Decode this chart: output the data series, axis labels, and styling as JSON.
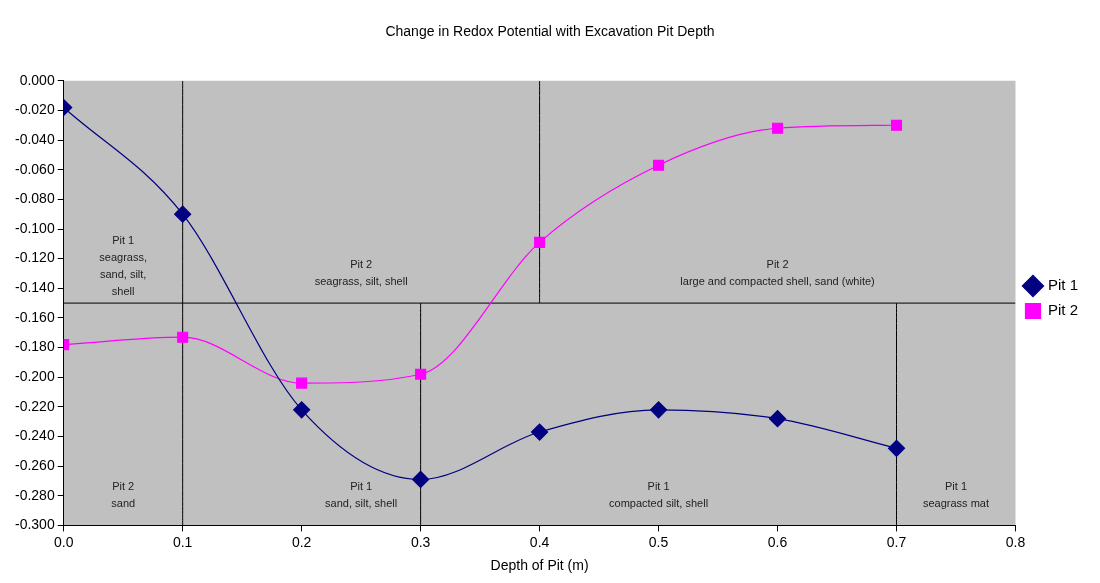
{
  "chart_data": {
    "type": "line",
    "title": "Change in Redox Potential with Excavation Pit Depth",
    "xlabel": "Depth of Pit (m)",
    "xlim": [
      0,
      0.8
    ],
    "xticks": [
      {
        "value": 0,
        "label": "0.0"
      },
      {
        "value": 0.1,
        "label": "0.1"
      },
      {
        "value": 0.2,
        "label": "0.2"
      },
      {
        "value": 0.3,
        "label": "0.3"
      },
      {
        "value": 0.4,
        "label": "0.4"
      },
      {
        "value": 0.5,
        "label": "0.5"
      },
      {
        "value": 0.6,
        "label": "0.6"
      },
      {
        "value": 0.7,
        "label": "0.7"
      },
      {
        "value": 0.8,
        "label": "0.8"
      }
    ],
    "ylim": [
      -0.3,
      0
    ],
    "yticks": [
      {
        "value": 0,
        "label": "0.000"
      },
      {
        "value": -0.02,
        "label": "-0.020"
      },
      {
        "value": -0.04,
        "label": "-0.040"
      },
      {
        "value": -0.06,
        "label": "-0.060"
      },
      {
        "value": -0.08,
        "label": "-0.080"
      },
      {
        "value": -0.1,
        "label": "-0.100"
      },
      {
        "value": -0.12,
        "label": "-0.120"
      },
      {
        "value": -0.14,
        "label": "-0.140"
      },
      {
        "value": -0.16,
        "label": "-0.160"
      },
      {
        "value": -0.18,
        "label": "-0.180"
      },
      {
        "value": -0.2,
        "label": "-0.200"
      },
      {
        "value": -0.22,
        "label": "-0.220"
      },
      {
        "value": -0.24,
        "label": "-0.240"
      },
      {
        "value": -0.26,
        "label": "-0.260"
      },
      {
        "value": -0.28,
        "label": "-0.280"
      },
      {
        "value": -0.3,
        "label": "-0.300"
      }
    ],
    "grid": false,
    "legend": "right",
    "x": [
      0,
      0.1,
      0.2,
      0.3,
      0.4,
      0.5,
      0.6,
      0.7
    ],
    "series": [
      {
        "name": "Pit 1",
        "color": "#000080",
        "marker": "diamond",
        "values": [
          -0.018,
          -0.09,
          -0.222,
          -0.269,
          -0.237,
          -0.222,
          -0.228,
          -0.248
        ]
      },
      {
        "name": "Pit 2",
        "color": "#ff00ff",
        "marker": "square",
        "values": [
          -0.178,
          -0.173,
          -0.204,
          -0.198,
          -0.109,
          -0.057,
          -0.032,
          -0.03
        ]
      },
      {
        "color": "#000000",
        "marker": "none",
        "x": [
          0.1,
          0.1
        ],
        "values": [
          0,
          -0.3
        ]
      },
      {
        "color": "#000000",
        "marker": "none",
        "x": [
          0,
          0.8
        ],
        "values": [
          -0.15,
          -0.15
        ]
      },
      {
        "color": "#000000",
        "marker": "none",
        "x": [
          0.4,
          0.4
        ],
        "values": [
          0,
          -0.15
        ]
      },
      {
        "color": "#000000",
        "marker": "none",
        "x": [
          0.3,
          0.3
        ],
        "values": [
          -0.15,
          -0.3
        ]
      },
      {
        "color": "#000000",
        "marker": "none",
        "x": [
          0.7,
          0.7
        ],
        "values": [
          -0.15,
          -0.3
        ]
      }
    ],
    "annotations": [
      "Pit 1\nseagrass,\nsand, silt,\nshell",
      "Pit 2\nseagrass, silt, shell",
      "Pit 2\nlarge and compacted shell, sand (white)",
      "Pit 2\nsand",
      "Pit 1\nsand, silt, shell",
      "Pit 1\ncompacted silt, shell",
      "Pit 1\nseagrass mat"
    ]
  }
}
